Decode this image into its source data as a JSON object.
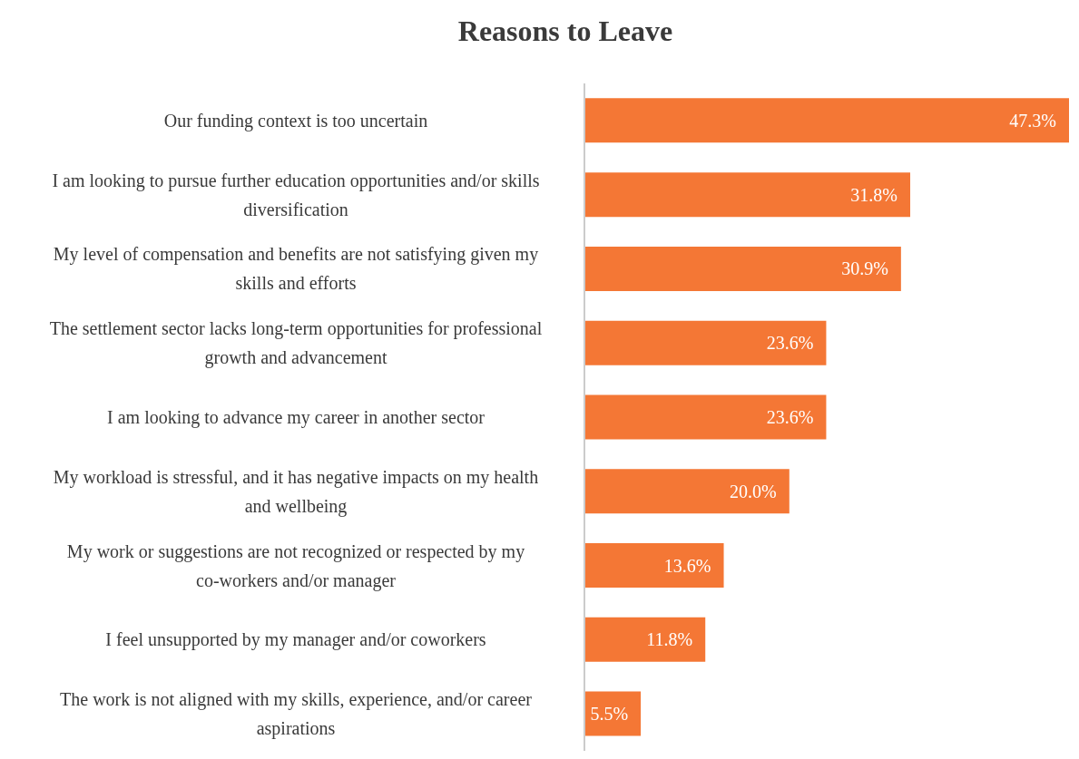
{
  "chart_data": {
    "type": "bar",
    "orientation": "horizontal",
    "title": "Reasons to Leave",
    "categories": [
      "Our funding context is too uncertain",
      "I am looking to pursue further education opportunities and/or skills diversification",
      "My level of compensation and benefits are not satisfying given my skills and efforts",
      "The settlement sector lacks long-term opportunities for professional growth and advancement",
      "I am looking to advance my career in another sector",
      "My workload is stressful, and it has negative impacts on my health and wellbeing",
      "My work or suggestions are not recognized or respected by my co-workers and/or manager",
      "I feel unsupported by my manager and/or coworkers",
      "The work is not aligned with my skills, experience, and/or career aspirations"
    ],
    "values": [
      47.3,
      31.8,
      30.9,
      23.6,
      23.6,
      20.0,
      13.6,
      11.8,
      5.5
    ],
    "value_labels": [
      "47.3%",
      "31.8%",
      "30.9%",
      "23.6%",
      "23.6%",
      "20.0%",
      "13.6%",
      "11.8%",
      "5.5%"
    ],
    "color": "#f47735",
    "grid": false,
    "legend": false
  }
}
